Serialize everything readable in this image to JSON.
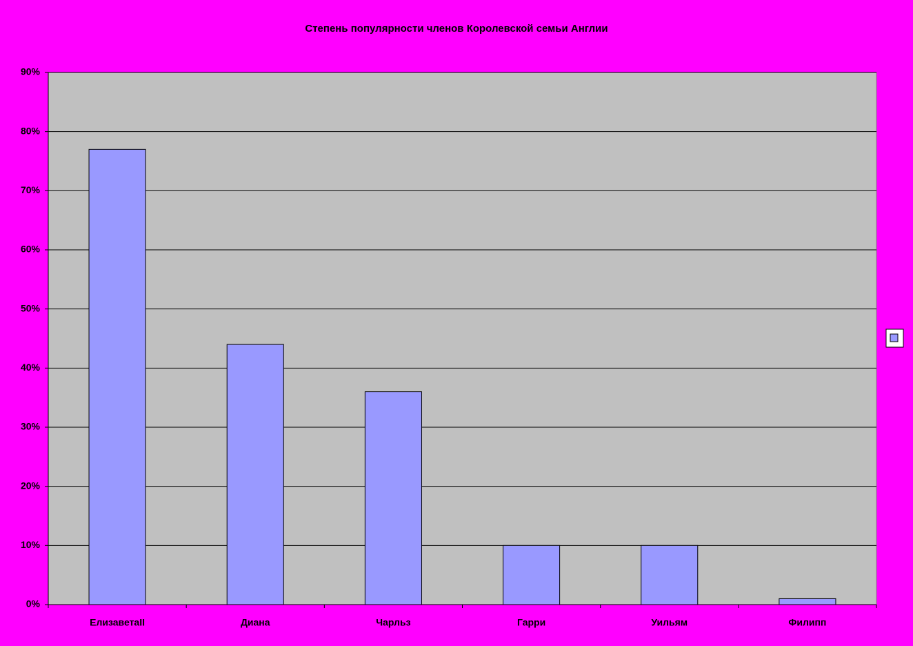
{
  "chart_data": {
    "type": "bar",
    "title": "Степень популярности членов Королевской семьи Англии",
    "categories": [
      "ЕлизаветаII",
      "Диана",
      "Чарльз",
      "Гарри",
      "Уильям",
      "Филипп"
    ],
    "values": [
      77,
      44,
      36,
      10,
      10,
      1
    ],
    "color": "#9999ff",
    "ylim": [
      0,
      90
    ],
    "yticks": [
      {
        "value": 0,
        "label": "0%"
      },
      {
        "value": 10,
        "label": "10%"
      },
      {
        "value": 20,
        "label": "20%"
      },
      {
        "value": 30,
        "label": "30%"
      },
      {
        "value": 40,
        "label": "40%"
      },
      {
        "value": 50,
        "label": "50%"
      },
      {
        "value": 60,
        "label": "60%"
      },
      {
        "value": 70,
        "label": "70%"
      },
      {
        "value": 80,
        "label": "80%"
      },
      {
        "value": 90,
        "label": "90%"
      }
    ],
    "grid": true
  }
}
